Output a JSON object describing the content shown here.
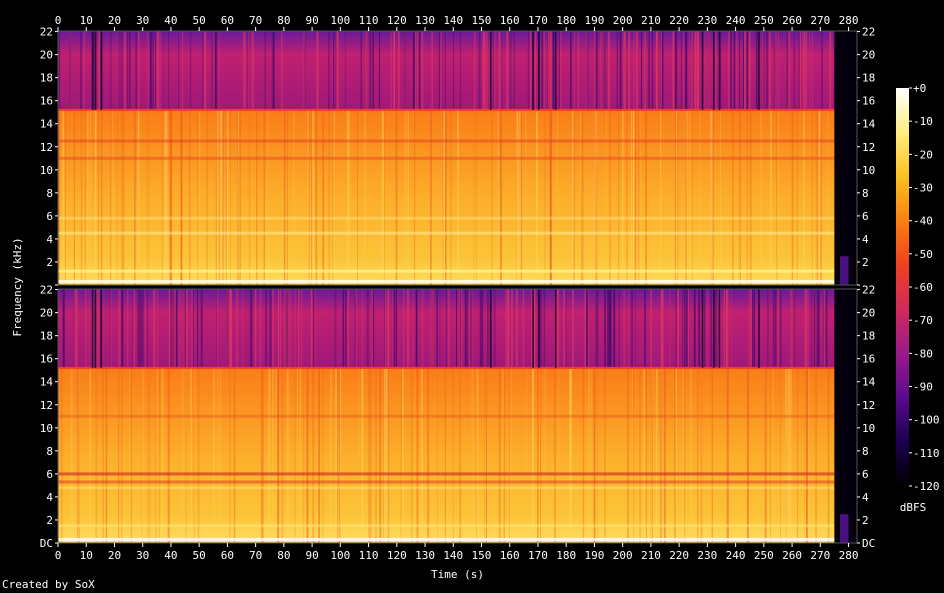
{
  "chart_data": {
    "type": "heatmap",
    "title": "",
    "xlabel": "Time (s)",
    "ylabel": "Frequency (kHz)",
    "xlim": [
      0,
      283
    ],
    "x_ticks": [
      0,
      10,
      20,
      30,
      40,
      50,
      60,
      70,
      80,
      90,
      100,
      110,
      120,
      130,
      140,
      150,
      160,
      170,
      180,
      190,
      200,
      210,
      220,
      230,
      240,
      250,
      260,
      270,
      280
    ],
    "channels": [
      {
        "ylim": [
          0,
          22.05
        ],
        "y_ticks": [
          {
            "value": 0,
            "label": ""
          },
          {
            "value": 2,
            "label": "2"
          },
          {
            "value": 4,
            "label": "4"
          },
          {
            "value": 6,
            "label": "6"
          },
          {
            "value": 8,
            "label": "8"
          },
          {
            "value": 10,
            "label": "10"
          },
          {
            "value": 12,
            "label": "12"
          },
          {
            "value": 14,
            "label": "14"
          },
          {
            "value": 16,
            "label": "16"
          },
          {
            "value": 18,
            "label": "18"
          },
          {
            "value": 20,
            "label": "20"
          },
          {
            "value": 22,
            "label": "22"
          }
        ]
      },
      {
        "ylim": [
          0,
          22.05
        ],
        "y_ticks": [
          {
            "value": 0,
            "label": "DC"
          },
          {
            "value": 2,
            "label": "2"
          },
          {
            "value": 4,
            "label": "4"
          },
          {
            "value": 6,
            "label": "6"
          },
          {
            "value": 8,
            "label": "8"
          },
          {
            "value": 10,
            "label": "10"
          },
          {
            "value": 12,
            "label": "12"
          },
          {
            "value": 14,
            "label": "14"
          },
          {
            "value": 16,
            "label": "16"
          },
          {
            "value": 18,
            "label": "18"
          },
          {
            "value": 20,
            "label": "20"
          },
          {
            "value": 22,
            "label": "22"
          }
        ]
      }
    ],
    "colorbar": {
      "label": "dBFS",
      "range": [
        -120,
        0
      ],
      "ticks": [
        {
          "value": 0,
          "label": "+0"
        },
        {
          "value": -10,
          "label": "-10"
        },
        {
          "value": -20,
          "label": "-20"
        },
        {
          "value": -30,
          "label": "-30"
        },
        {
          "value": -40,
          "label": "-40"
        },
        {
          "value": -50,
          "label": "-50"
        },
        {
          "value": -60,
          "label": "-60"
        },
        {
          "value": -70,
          "label": "-70"
        },
        {
          "value": -80,
          "label": "-80"
        },
        {
          "value": -90,
          "label": "-90"
        },
        {
          "value": -100,
          "label": "-100"
        },
        {
          "value": -110,
          "label": "-110"
        },
        {
          "value": -120,
          "label": "-120"
        }
      ],
      "colors": [
        "#000000",
        "#1a0050",
        "#5a0a8c",
        "#9a1a8a",
        "#d02a5a",
        "#f04020",
        "#fa8010",
        "#fcc020",
        "#ffee80",
        "#ffffff"
      ]
    },
    "features": {
      "band_edge_khz": 15.2,
      "audio_end_s": 275
    },
    "grid": false
  },
  "footer": {
    "credit": "Created by SoX"
  }
}
